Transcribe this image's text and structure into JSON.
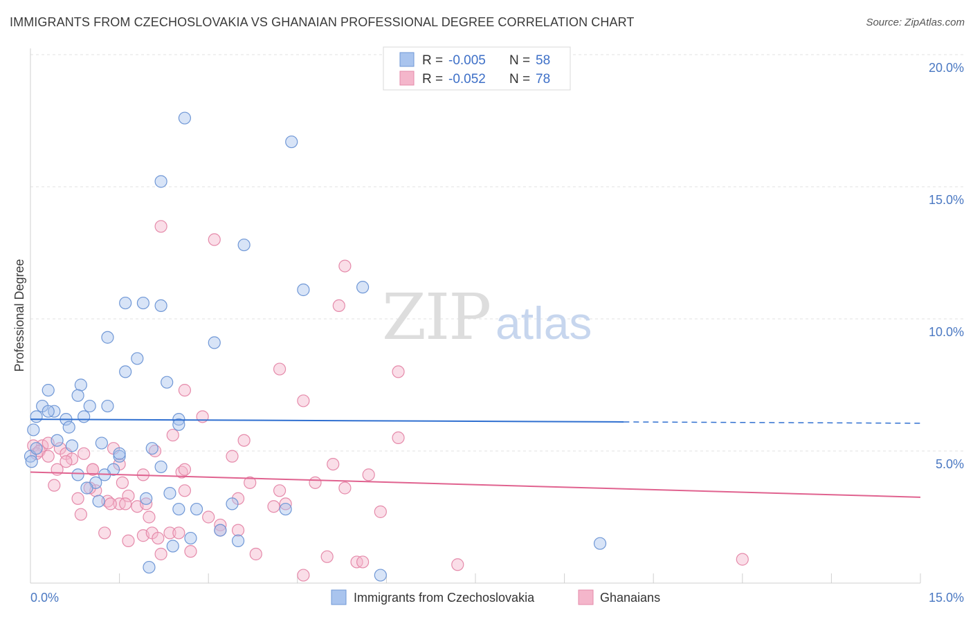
{
  "title": "IMMIGRANTS FROM CZECHOSLOVAKIA VS GHANAIAN PROFESSIONAL DEGREE CORRELATION CHART",
  "source": "Source: ZipAtlas.com",
  "watermark": {
    "zip": "ZIP",
    "atlas": "atlas"
  },
  "legend": {
    "rows": [
      {
        "r_label": "R = ",
        "r_value": "-0.005",
        "n_label": "N = ",
        "n_value": "58"
      },
      {
        "r_label": "R = ",
        "r_value": "-0.052",
        "n_label": "N = ",
        "n_value": "78"
      }
    ]
  },
  "chart_data": {
    "type": "scatter",
    "ylabel": "Professional Degree",
    "xlim": [
      0,
      15
    ],
    "ylim": [
      0,
      20
    ],
    "x_tick_labels": [
      {
        "v": 0,
        "label": "0.0%"
      },
      {
        "v": 15,
        "label": "15.0%"
      }
    ],
    "y_tick_labels": [
      {
        "v": 5,
        "label": "5.0%"
      },
      {
        "v": 10,
        "label": "10.0%"
      },
      {
        "v": 15,
        "label": "15.0%"
      },
      {
        "v": 20,
        "label": "20.0%"
      }
    ],
    "colors": {
      "blue_fill": "#a9c4ee",
      "blue_stroke": "#6f97d6",
      "blue_line": "#2f6fd0",
      "pink_fill": "#f4b6cb",
      "pink_stroke": "#e58aaa",
      "pink_line": "#e0628f"
    },
    "series": [
      {
        "name": "Immigrants from Czechoslovakia",
        "trend": {
          "x0": 0,
          "y0": 6.2,
          "x1": 10.0,
          "y1": 6.1,
          "x_dash_end": 15,
          "y_dash_end": 6.05
        },
        "points": [
          [
            2.6,
            17.6
          ],
          [
            4.4,
            16.7
          ],
          [
            2.2,
            15.2
          ],
          [
            3.6,
            12.8
          ],
          [
            4.6,
            11.1
          ],
          [
            5.6,
            11.2
          ],
          [
            1.6,
            10.6
          ],
          [
            1.9,
            10.6
          ],
          [
            2.2,
            10.5
          ],
          [
            1.3,
            9.3
          ],
          [
            3.1,
            9.1
          ],
          [
            1.8,
            8.5
          ],
          [
            1.6,
            8.0
          ],
          [
            2.3,
            7.6
          ],
          [
            0.85,
            7.5
          ],
          [
            0.3,
            7.3
          ],
          [
            0.8,
            7.1
          ],
          [
            1.3,
            6.7
          ],
          [
            0.2,
            6.7
          ],
          [
            0.4,
            6.5
          ],
          [
            0.3,
            6.5
          ],
          [
            1.0,
            6.7
          ],
          [
            0.1,
            6.3
          ],
          [
            0.6,
            6.2
          ],
          [
            0.9,
            6.3
          ],
          [
            2.5,
            6.2
          ],
          [
            0.65,
            5.9
          ],
          [
            2.5,
            6.0
          ],
          [
            0.45,
            5.4
          ],
          [
            0.05,
            5.8
          ],
          [
            1.2,
            5.3
          ],
          [
            0.7,
            5.2
          ],
          [
            2.05,
            5.1
          ],
          [
            1.5,
            4.8
          ],
          [
            1.5,
            4.9
          ],
          [
            2.2,
            4.4
          ],
          [
            1.4,
            4.3
          ],
          [
            0.8,
            4.1
          ],
          [
            1.25,
            4.1
          ],
          [
            1.1,
            3.8
          ],
          [
            0.95,
            3.6
          ],
          [
            2.35,
            3.4
          ],
          [
            1.15,
            3.1
          ],
          [
            1.95,
            3.2
          ],
          [
            3.4,
            3.0
          ],
          [
            2.5,
            2.8
          ],
          [
            2.8,
            2.8
          ],
          [
            4.3,
            2.8
          ],
          [
            3.2,
            2.0
          ],
          [
            2.7,
            1.7
          ],
          [
            3.5,
            1.6
          ],
          [
            2.4,
            1.4
          ],
          [
            9.6,
            1.5
          ],
          [
            2.0,
            0.6
          ],
          [
            5.9,
            0.3
          ],
          [
            0.0,
            4.8
          ],
          [
            0.02,
            4.6
          ],
          [
            0.1,
            5.1
          ]
        ]
      },
      {
        "name": "Ghanaians",
        "trend": {
          "x0": 0,
          "y0": 4.2,
          "x1": 15,
          "y1": 3.25
        },
        "points": [
          [
            2.2,
            13.5
          ],
          [
            3.1,
            13.0
          ],
          [
            5.3,
            12.0
          ],
          [
            5.2,
            10.5
          ],
          [
            4.2,
            8.1
          ],
          [
            6.2,
            8.0
          ],
          [
            2.6,
            7.3
          ],
          [
            4.6,
            6.9
          ],
          [
            2.9,
            6.3
          ],
          [
            0.2,
            5.2
          ],
          [
            0.5,
            5.1
          ],
          [
            0.05,
            5.2
          ],
          [
            0.1,
            4.9
          ],
          [
            0.15,
            5.0
          ],
          [
            0.3,
            4.8
          ],
          [
            0.6,
            4.9
          ],
          [
            0.7,
            4.7
          ],
          [
            0.6,
            4.6
          ],
          [
            0.9,
            4.9
          ],
          [
            1.4,
            5.1
          ],
          [
            2.1,
            5.0
          ],
          [
            2.4,
            5.6
          ],
          [
            3.6,
            5.4
          ],
          [
            6.2,
            5.5
          ],
          [
            3.4,
            4.8
          ],
          [
            5.1,
            4.5
          ],
          [
            0.45,
            4.3
          ],
          [
            1.05,
            4.3
          ],
          [
            1.5,
            4.5
          ],
          [
            2.55,
            4.2
          ],
          [
            2.6,
            4.3
          ],
          [
            1.9,
            4.1
          ],
          [
            3.7,
            3.8
          ],
          [
            4.8,
            3.8
          ],
          [
            5.7,
            4.1
          ],
          [
            1.55,
            3.8
          ],
          [
            0.4,
            3.7
          ],
          [
            1.1,
            3.5
          ],
          [
            1.0,
            3.6
          ],
          [
            4.2,
            3.5
          ],
          [
            5.3,
            3.6
          ],
          [
            1.65,
            3.3
          ],
          [
            0.8,
            3.2
          ],
          [
            1.3,
            3.1
          ],
          [
            1.5,
            3.0
          ],
          [
            1.6,
            3.0
          ],
          [
            2.6,
            3.5
          ],
          [
            3.5,
            3.2
          ],
          [
            4.3,
            3.0
          ],
          [
            4.1,
            2.9
          ],
          [
            1.35,
            3.0
          ],
          [
            1.8,
            2.9
          ],
          [
            1.95,
            3.0
          ],
          [
            0.85,
            2.6
          ],
          [
            2.0,
            2.5
          ],
          [
            3.0,
            2.5
          ],
          [
            3.2,
            2.2
          ],
          [
            3.2,
            2.0
          ],
          [
            3.5,
            2.0
          ],
          [
            5.9,
            2.7
          ],
          [
            1.25,
            1.9
          ],
          [
            1.9,
            1.8
          ],
          [
            2.05,
            1.9
          ],
          [
            2.15,
            1.7
          ],
          [
            2.35,
            1.9
          ],
          [
            2.5,
            1.9
          ],
          [
            1.65,
            1.6
          ],
          [
            2.7,
            1.2
          ],
          [
            3.8,
            1.1
          ],
          [
            5.0,
            1.0
          ],
          [
            5.5,
            0.8
          ],
          [
            5.6,
            0.8
          ],
          [
            2.2,
            1.1
          ],
          [
            4.6,
            0.3
          ],
          [
            7.2,
            0.7
          ],
          [
            12.0,
            0.9
          ],
          [
            1.05,
            4.3
          ],
          [
            0.3,
            5.3
          ]
        ]
      }
    ]
  },
  "bottom_legend": [
    "Immigrants from Czechoslovakia",
    "Ghanaians"
  ]
}
